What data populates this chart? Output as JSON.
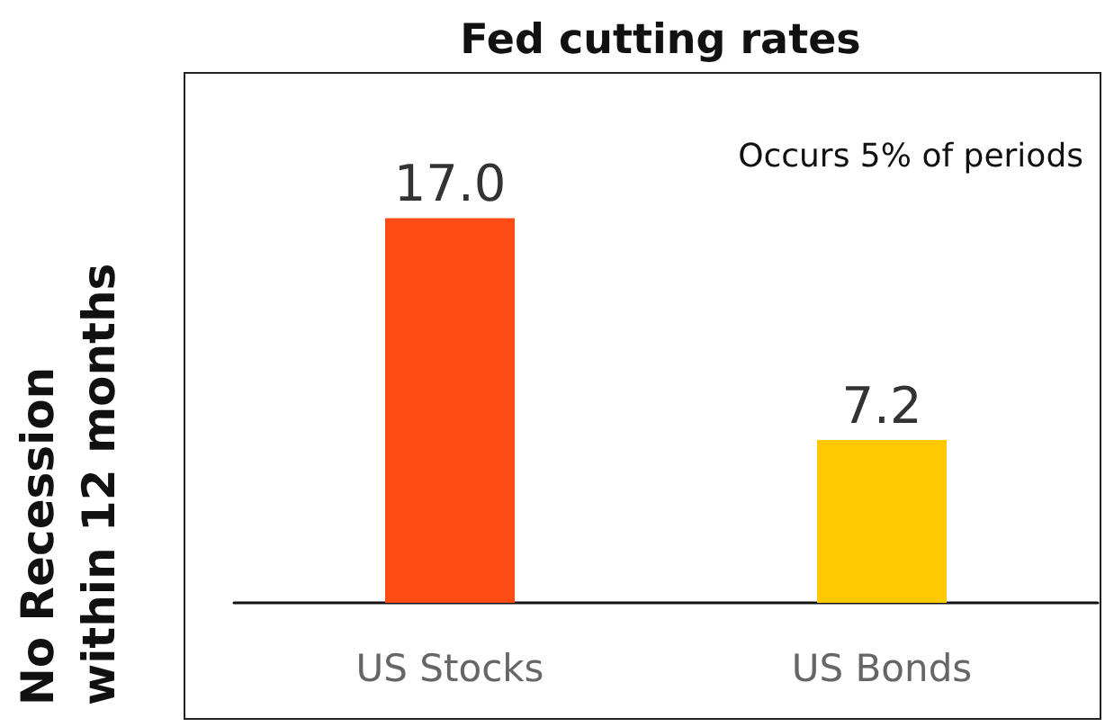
{
  "chart_data": {
    "type": "bar",
    "title": "Fed cutting rates",
    "ylabel": "No Recession within 12 months",
    "annotations": [
      "Occurs 5% of periods"
    ],
    "categories": [
      "US Stocks",
      "US Bonds"
    ],
    "values": [
      17.0,
      7.2
    ],
    "colors": [
      "#fc4c14",
      "#ffc800"
    ],
    "value_labels": [
      "17.0",
      "7.2"
    ],
    "grid": false
  }
}
